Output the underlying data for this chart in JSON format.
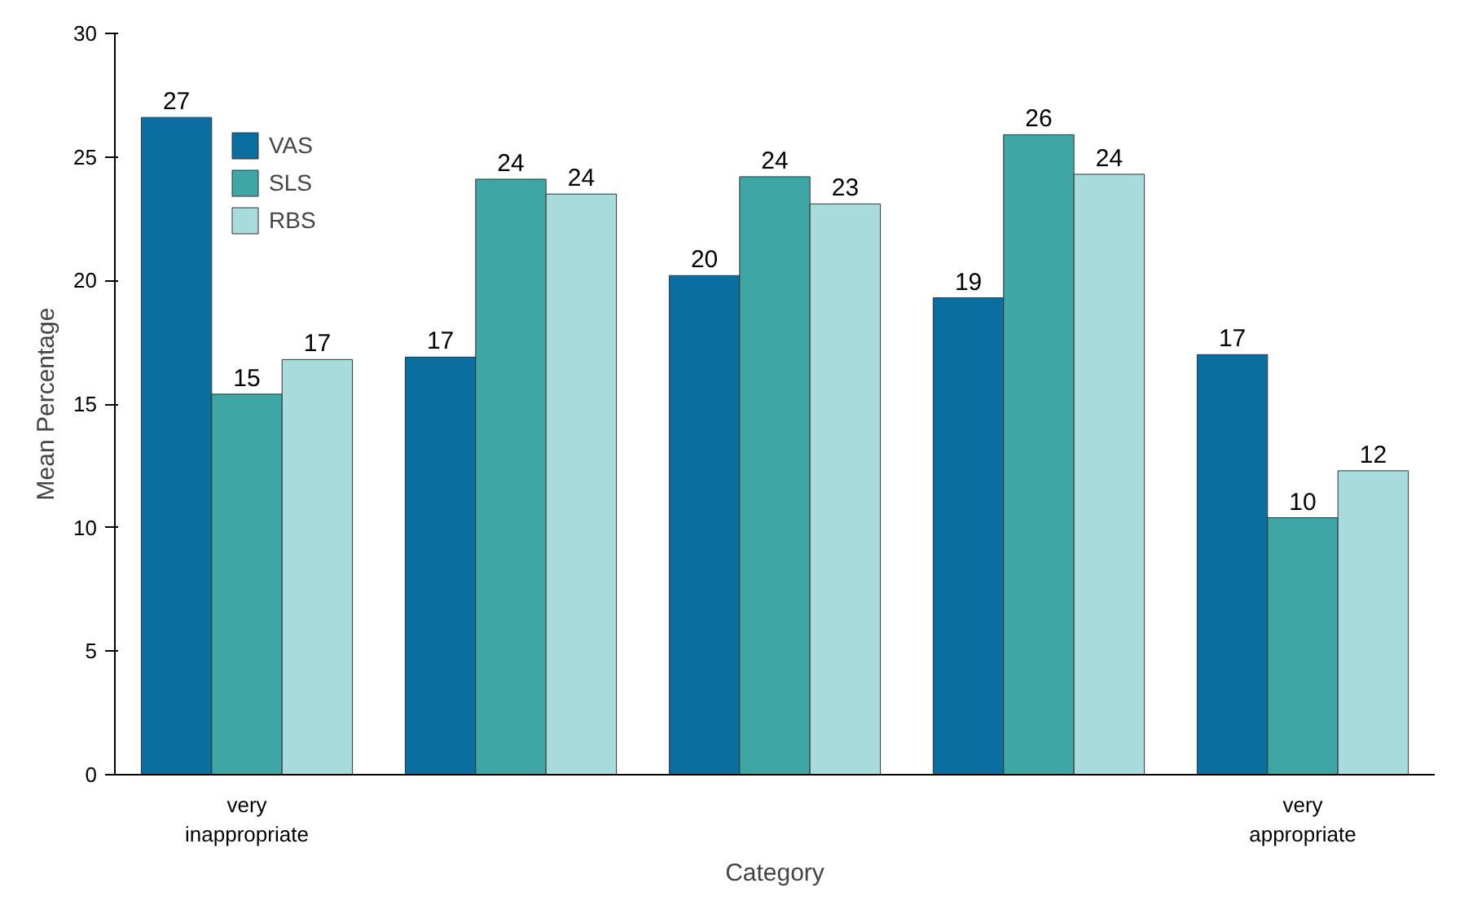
{
  "chart_data": {
    "type": "bar",
    "xlabel": "Category",
    "ylabel": "Mean Percentage",
    "categories": [
      "very inappropriate",
      null,
      null,
      null,
      "very appropriate"
    ],
    "series": [
      {
        "name": "VAS",
        "color": "#0a6fa0",
        "values": [
          26.6,
          16.9,
          20.2,
          19.3,
          17.0
        ],
        "value_labels": [
          "27",
          "17",
          "20",
          "19",
          "17"
        ]
      },
      {
        "name": "SLS",
        "color": "#3fa6a6",
        "values": [
          15.4,
          24.1,
          24.2,
          25.9,
          10.4
        ],
        "value_labels": [
          "15",
          "24",
          "24",
          "26",
          "10"
        ]
      },
      {
        "name": "RBS",
        "color": "#a8dcdc",
        "values": [
          16.8,
          23.5,
          23.1,
          24.3,
          12.3
        ],
        "value_labels": [
          "17",
          "24",
          "23",
          "24",
          "12"
        ]
      }
    ],
    "ylim": [
      0,
      30
    ],
    "yticks": [
      0,
      5,
      10,
      15,
      20,
      25,
      30
    ],
    "grid": false,
    "legend": "top left"
  }
}
